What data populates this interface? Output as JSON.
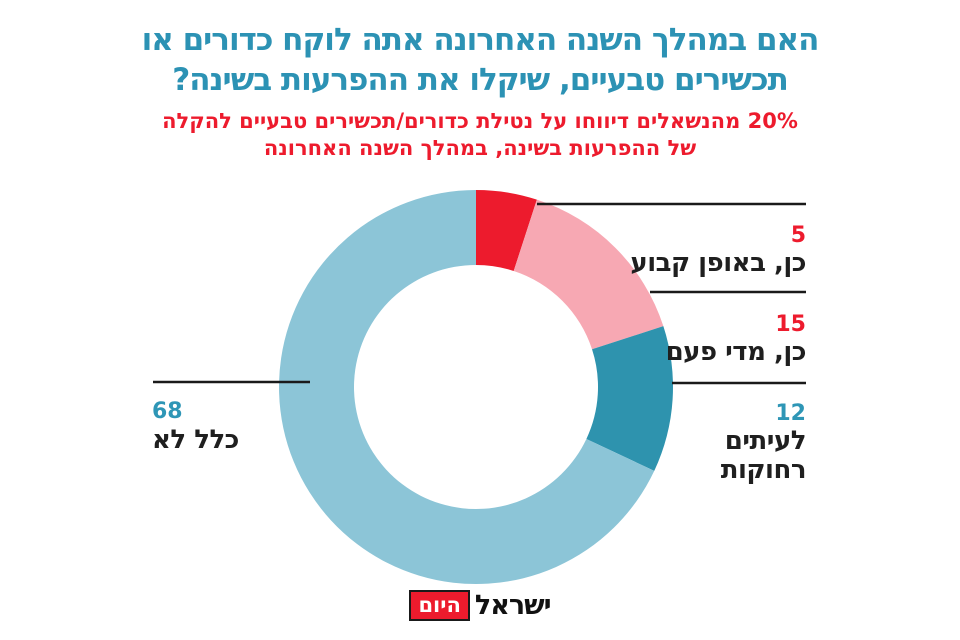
{
  "page": {
    "background": "#ffffff"
  },
  "header": {
    "title_line1": "האם במהלך השנה האחרונה אתה לוקח כדורים או",
    "title_line2": "תכשירים טבעיים, שיקלו את ההפרעות בשינה?",
    "title_color": "#2c92b4",
    "subtitle_line1": "20% מהנשאלים דיווחו על נטילת כדורים/תכשירים טבעיים להקלה",
    "subtitle_line2": "של ההפרעות בשינה, במהלך השנה האחרונה",
    "subtitle_color": "#ed1b2d"
  },
  "chart_data": {
    "type": "pie",
    "variant": "donut",
    "title": "האם במהלך השנה האחרונה אתה לוקח כדורים או תכשירים טבעיים, שיקלו את ההפרעות בשינה?",
    "categories": [
      "כן, באופן קבוע",
      "כן, מדי פעם",
      "לעיתים רחוקות",
      "כלל לא"
    ],
    "values": [
      5,
      15,
      12,
      68
    ],
    "colors": [
      "#ed1b2d",
      "#f7a8b3",
      "#2e93ae",
      "#8cc5d7"
    ],
    "value_label_colors": [
      "#ed1b2d",
      "#ed1b2d",
      "#2e96b6",
      "#2e96b6"
    ],
    "start_angle_deg": 0,
    "direction": "clockwise",
    "total": 100,
    "legend_position": "callout-labels",
    "callout_line_color": "#1a1a1a"
  },
  "footer": {
    "logo_text": "ישראל",
    "logo_boxed_text": "היום",
    "logo_box_color": "#ed1b2d"
  }
}
